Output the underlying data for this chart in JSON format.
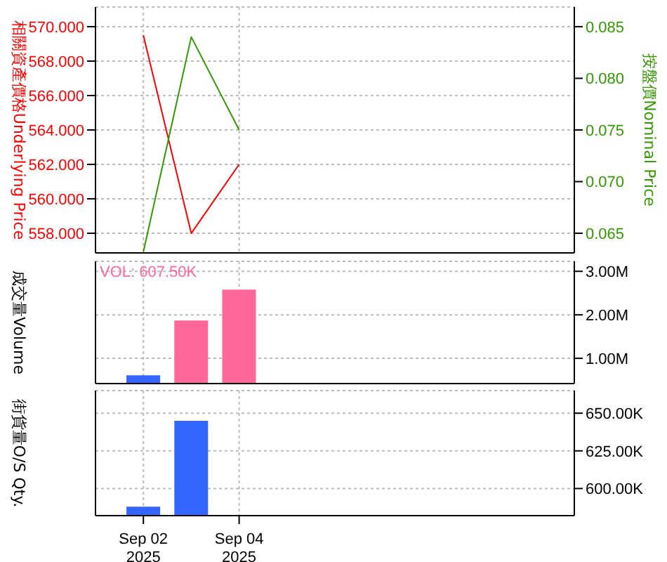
{
  "chart_data": [
    {
      "type": "line",
      "ylabel": "相關資產價格Underlying Price",
      "y2label": "按盤價Nominal Price",
      "x": [
        "2025-09-02",
        "2025-09-03",
        "2025-09-04"
      ],
      "xlim": [
        "2025-09-01",
        "2025-09-11"
      ],
      "xticks": [
        {
          "value": "2025-09-02",
          "label": null
        },
        {
          "value": "2025-09-04",
          "label": null
        }
      ],
      "ylim": [
        556.86,
        571.14
      ],
      "yticks": [
        {
          "value": 558,
          "label": "558.000"
        },
        {
          "value": 560,
          "label": "560.000"
        },
        {
          "value": 562,
          "label": "562.000"
        },
        {
          "value": 564,
          "label": "564.000"
        },
        {
          "value": 566,
          "label": "566.000"
        },
        {
          "value": 568,
          "label": "568.000"
        },
        {
          "value": 570,
          "label": "570.000"
        }
      ],
      "y2lim": [
        0.0631,
        0.0869
      ],
      "y2ticks": [
        {
          "value": 0.065,
          "label": "0.065"
        },
        {
          "value": 0.07,
          "label": "0.070"
        },
        {
          "value": 0.075,
          "label": "0.075"
        },
        {
          "value": 0.08,
          "label": "0.080"
        },
        {
          "value": 0.085,
          "label": "0.085"
        }
      ],
      "grid": true,
      "tick_labels": "y",
      "series": [
        {
          "color": "#ff0000",
          "values": [
            569.5,
            558.0,
            562.0
          ]
        },
        {
          "color": "#339900",
          "axis": "y2",
          "values": [
            0.0632,
            0.084,
            0.075
          ]
        }
      ]
    },
    {
      "type": "bar",
      "ylabel": "成交量Volume",
      "annotations": [
        "VOL: 607.50K"
      ],
      "x": [
        "2025-09-02",
        "2025-09-03",
        "2025-09-04"
      ],
      "xlim": [
        "2025-09-01",
        "2025-09-11"
      ],
      "xticks": [
        {
          "value": "2025-09-02",
          "label": null
        },
        {
          "value": "2025-09-04",
          "label": null
        }
      ],
      "ylim": [
        420000,
        3230000
      ],
      "yticks": [
        {
          "value": 1000000,
          "label": "1.00M"
        },
        {
          "value": 2000000,
          "label": "2.00M"
        },
        {
          "value": 3000000,
          "label": "3.00M"
        }
      ],
      "grid": true,
      "tick_labels": "y",
      "values": [
        610000,
        1870000,
        2580000
      ],
      "colors": [
        "#3366ff",
        "#ff6699",
        "#ff6699"
      ]
    },
    {
      "type": "bar",
      "ylabel": "街貨量O/S Qty.",
      "x": [
        "2025-09-02",
        "2025-09-03"
      ],
      "xlim": [
        "2025-09-01",
        "2025-09-11"
      ],
      "xticks": [
        {
          "value": "2025-09-02",
          "label": "Sep 02\n2025"
        },
        {
          "value": "2025-09-04",
          "label": "Sep 04\n2025"
        }
      ],
      "ylim": [
        582000,
        665000
      ],
      "yticks": [
        {
          "value": 600000,
          "label": "600.00K"
        },
        {
          "value": 625000,
          "label": "625.00K"
        },
        {
          "value": 650000,
          "label": "650.00K"
        }
      ],
      "grid": true,
      "values": [
        588000,
        645000
      ],
      "colors": [
        "#3366ff",
        "#3366ff"
      ]
    }
  ]
}
